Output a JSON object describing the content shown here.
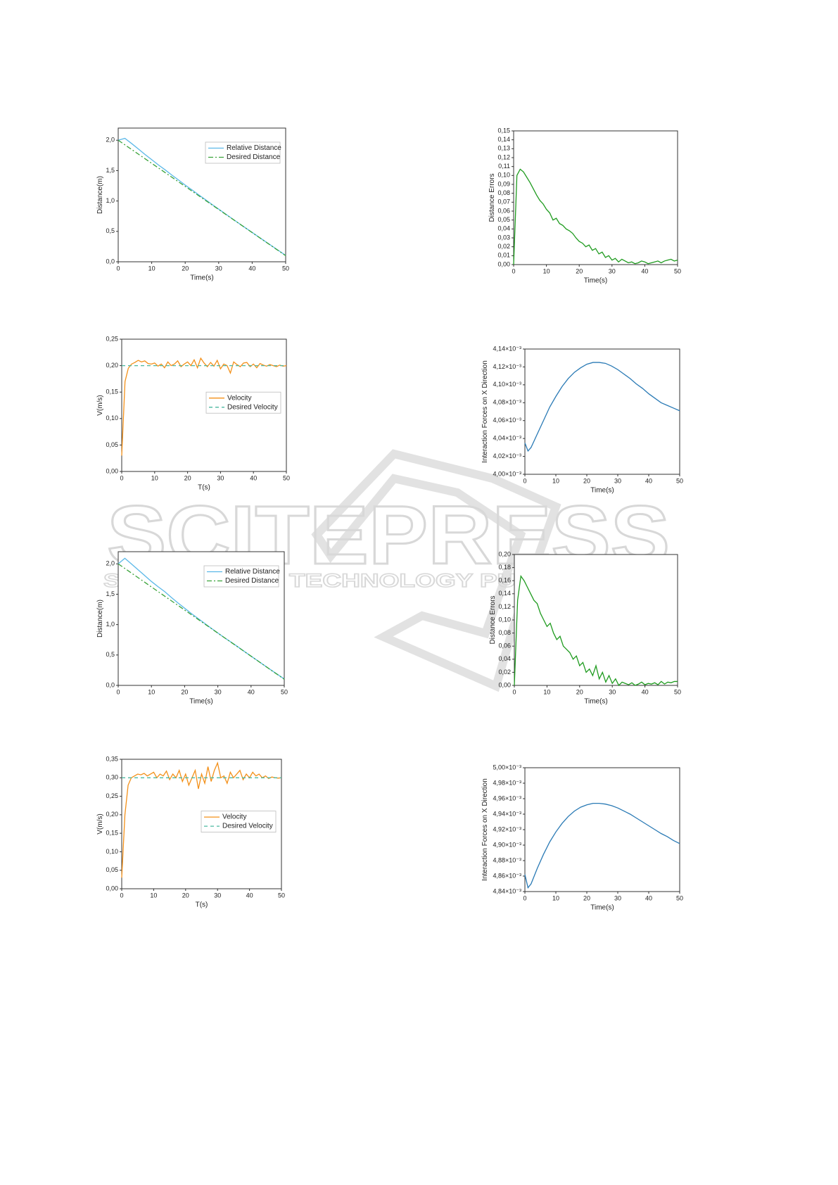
{
  "watermark": {
    "title": "SCITEPRESS",
    "subtitle": "SCIENCE AND TECHNOLOGY PUBLICATIONS"
  },
  "chart_data": [
    {
      "type": "line",
      "x_label": "Time(s)",
      "y_label": "Distance(m)",
      "legend": "upper right",
      "x": [
        0,
        2,
        4,
        6,
        8,
        10,
        12,
        14,
        16,
        18,
        20,
        22,
        24,
        26,
        28,
        30,
        32,
        34,
        36,
        38,
        40,
        42,
        44,
        46,
        48,
        50
      ],
      "series": [
        {
          "name": "Relative Distance",
          "color": "#5bb8e8",
          "style": "solid",
          "values": [
            2.0,
            2.031,
            1.946,
            1.857,
            1.766,
            1.68,
            1.594,
            1.513,
            1.427,
            1.346,
            1.262,
            1.184,
            1.103,
            1.024,
            0.944,
            0.866,
            0.789,
            0.711,
            0.634,
            0.558,
            0.483,
            0.406,
            0.331,
            0.256,
            0.181,
            0.105
          ]
        },
        {
          "name": "Desired Distance",
          "color": "#3aa33a",
          "style": "dashdot",
          "x": [
            0,
            50
          ],
          "values": [
            2.0,
            0.1
          ]
        }
      ],
      "xlim": [
        0,
        50
      ],
      "xticks": [
        0,
        10,
        20,
        30,
        40,
        50
      ],
      "ylim": [
        0,
        2.2
      ],
      "yticks": [
        {
          "value": 0,
          "label": "0,0"
        },
        {
          "value": 0.5,
          "label": "0,5"
        },
        {
          "value": 1,
          "label": "1,0"
        },
        {
          "value": 1.5,
          "label": "1,5"
        },
        {
          "value": 2,
          "label": "2,0"
        }
      ]
    },
    {
      "type": "line",
      "x_label": "Time(s)",
      "y_label": "Distance Errors",
      "x": [
        0,
        1,
        2,
        3,
        4,
        5,
        6,
        7,
        8,
        9,
        10,
        11,
        12,
        13,
        14,
        15,
        16,
        17,
        18,
        19,
        20,
        21,
        22,
        23,
        24,
        25,
        26,
        27,
        28,
        29,
        30,
        31,
        32,
        33,
        34,
        35,
        36,
        37,
        38,
        39,
        40,
        41,
        42,
        43,
        44,
        45,
        46,
        47,
        48,
        49,
        50
      ],
      "series": [
        {
          "name": "Distance Errors",
          "color": "#1f9b1f",
          "style": "solid",
          "values": [
            0,
            0.1,
            0.107,
            0.104,
            0.098,
            0.092,
            0.085,
            0.078,
            0.072,
            0.068,
            0.062,
            0.058,
            0.05,
            0.052,
            0.046,
            0.044,
            0.04,
            0.038,
            0.035,
            0.03,
            0.026,
            0.024,
            0.02,
            0.022,
            0.016,
            0.018,
            0.012,
            0.014,
            0.008,
            0.01,
            0.005,
            0.007,
            0.003,
            0.006,
            0.004,
            0.002,
            0.003,
            0.001,
            0.002,
            0.004,
            0.003,
            0.001,
            0.002,
            0.003,
            0.004,
            0.002,
            0.004,
            0.005,
            0.006,
            0.004,
            0.005
          ]
        }
      ],
      "xlim": [
        0,
        50
      ],
      "xticks": [
        0,
        10,
        20,
        30,
        40,
        50
      ],
      "ylim": [
        0,
        0.15
      ],
      "yticks": [
        {
          "value": 0,
          "label": "0,00"
        },
        {
          "value": 0.01,
          "label": "0,01"
        },
        {
          "value": 0.02,
          "label": "0,02"
        },
        {
          "value": 0.03,
          "label": "0,03"
        },
        {
          "value": 0.04,
          "label": "0,04"
        },
        {
          "value": 0.05,
          "label": "0,05"
        },
        {
          "value": 0.06,
          "label": "0,06"
        },
        {
          "value": 0.07,
          "label": "0,07"
        },
        {
          "value": 0.08,
          "label": "0,08"
        },
        {
          "value": 0.09,
          "label": "0,09"
        },
        {
          "value": 0.1,
          "label": "0,10"
        },
        {
          "value": 0.11,
          "label": "0,11"
        },
        {
          "value": 0.12,
          "label": "0,12"
        },
        {
          "value": 0.13,
          "label": "0,13"
        },
        {
          "value": 0.14,
          "label": "0,14"
        },
        {
          "value": 0.15,
          "label": "0,15"
        }
      ]
    },
    {
      "type": "line",
      "x_label": "T(s)",
      "y_label": "V(m/s)",
      "legend": "center right",
      "x": [
        0,
        1,
        2,
        3,
        4,
        5,
        6,
        7,
        8,
        9,
        10,
        11,
        12,
        13,
        14,
        15,
        16,
        17,
        18,
        19,
        20,
        21,
        22,
        23,
        24,
        25,
        26,
        27,
        28,
        29,
        30,
        31,
        32,
        33,
        34,
        35,
        36,
        37,
        38,
        39,
        40,
        41,
        42,
        43,
        44,
        45,
        46,
        47,
        48,
        49,
        50
      ],
      "series": [
        {
          "name": "Velocity",
          "color": "#f39019",
          "style": "solid",
          "values": [
            0.03,
            0.17,
            0.195,
            0.203,
            0.206,
            0.21,
            0.207,
            0.209,
            0.204,
            0.203,
            0.205,
            0.199,
            0.203,
            0.196,
            0.207,
            0.2,
            0.203,
            0.209,
            0.198,
            0.203,
            0.207,
            0.2,
            0.211,
            0.196,
            0.214,
            0.205,
            0.198,
            0.206,
            0.199,
            0.21,
            0.194,
            0.203,
            0.2,
            0.186,
            0.207,
            0.202,
            0.198,
            0.205,
            0.206,
            0.198,
            0.203,
            0.196,
            0.204,
            0.201,
            0.199,
            0.202,
            0.2,
            0.198,
            0.201,
            0.199,
            0.2
          ]
        },
        {
          "name": "Desired Velocity",
          "color": "#4db8a0",
          "style": "dashed",
          "x": [
            0,
            50
          ],
          "values": [
            0.2,
            0.2
          ]
        }
      ],
      "xlim": [
        0,
        50
      ],
      "xticks": [
        0,
        10,
        20,
        30,
        40,
        50
      ],
      "ylim": [
        0,
        0.25
      ],
      "yticks": [
        {
          "value": 0,
          "label": "0,00"
        },
        {
          "value": 0.05,
          "label": "0,05"
        },
        {
          "value": 0.1,
          "label": "0,10"
        },
        {
          "value": 0.15,
          "label": "0,15"
        },
        {
          "value": 0.2,
          "label": "0,20"
        },
        {
          "value": 0.25,
          "label": "0,25"
        }
      ]
    },
    {
      "type": "line",
      "x_label": "Time(s)",
      "y_label": "Interaction Forces on X Direction",
      "x": [
        0,
        1,
        2,
        4,
        6,
        8,
        10,
        12,
        14,
        16,
        18,
        20,
        22,
        24,
        26,
        28,
        30,
        32,
        34,
        36,
        38,
        40,
        42,
        44,
        46,
        48,
        50
      ],
      "series": [
        {
          "name": "Interaction Forces on X Direction",
          "color": "#2a7ab5",
          "style": "solid",
          "values": [
            0.004035,
            0.004026,
            0.00403,
            0.004045,
            0.00406,
            0.004075,
            0.004087,
            0.004098,
            0.004107,
            0.004114,
            0.004119,
            0.004123,
            0.004125,
            0.004125,
            0.004124,
            0.004121,
            0.004117,
            0.004112,
            0.004107,
            0.004101,
            0.004096,
            0.00409,
            0.004085,
            0.00408,
            0.004077,
            0.004074,
            0.004071
          ]
        }
      ],
      "xlim": [
        0,
        50
      ],
      "xticks": [
        0,
        10,
        20,
        30,
        40,
        50
      ],
      "ylim": [
        0.004,
        0.00414
      ],
      "yticks": [
        {
          "value": 0.004,
          "label": "4,00×10⁻³"
        },
        {
          "value": 0.00402,
          "label": "4,02×10⁻³"
        },
        {
          "value": 0.00404,
          "label": "4,04×10⁻³"
        },
        {
          "value": 0.00406,
          "label": "4,06×10⁻³"
        },
        {
          "value": 0.00408,
          "label": "4,08×10⁻³"
        },
        {
          "value": 0.0041,
          "label": "4,10×10⁻³"
        },
        {
          "value": 0.00412,
          "label": "4,12×10⁻³"
        },
        {
          "value": 0.00414,
          "label": "4,14×10⁻³"
        }
      ]
    },
    {
      "type": "line",
      "x_label": "Time(s)",
      "y_label": "Distance(m)",
      "legend": "upper right",
      "x": [
        0,
        2,
        4,
        6,
        8,
        10,
        12,
        14,
        16,
        18,
        20,
        22,
        24,
        26,
        28,
        30,
        32,
        34,
        36,
        38,
        40,
        42,
        44,
        46,
        48,
        50
      ],
      "series": [
        {
          "name": "Relative Distance",
          "color": "#5bb8e8",
          "style": "solid",
          "values": [
            2.0,
            2.091,
            1.998,
            1.902,
            1.806,
            1.71,
            1.624,
            1.543,
            1.447,
            1.356,
            1.27,
            1.184,
            1.103,
            1.022,
            0.941,
            0.863,
            0.784,
            0.711,
            0.636,
            0.558,
            0.481,
            0.406,
            0.329,
            0.254,
            0.18,
            0.106
          ]
        },
        {
          "name": "Desired Distance",
          "color": "#3aa33a",
          "style": "dashdot",
          "x": [
            0,
            50
          ],
          "values": [
            2.0,
            0.1
          ]
        }
      ],
      "xlim": [
        0,
        50
      ],
      "xticks": [
        0,
        10,
        20,
        30,
        40,
        50
      ],
      "ylim": [
        0,
        2.2
      ],
      "yticks": [
        {
          "value": 0,
          "label": "0,0"
        },
        {
          "value": 0.5,
          "label": "0,5"
        },
        {
          "value": 1,
          "label": "1,0"
        },
        {
          "value": 1.5,
          "label": "1,5"
        },
        {
          "value": 2,
          "label": "2,0"
        }
      ]
    },
    {
      "type": "line",
      "x_label": "Time(s)",
      "y_label": "Distance Errors",
      "x": [
        0,
        1,
        2,
        3,
        4,
        5,
        6,
        7,
        8,
        9,
        10,
        11,
        12,
        13,
        14,
        15,
        16,
        17,
        18,
        19,
        20,
        21,
        22,
        23,
        24,
        25,
        26,
        27,
        28,
        29,
        30,
        31,
        32,
        33,
        34,
        35,
        36,
        37,
        38,
        39,
        40,
        41,
        42,
        43,
        44,
        45,
        46,
        47,
        48,
        49,
        50
      ],
      "series": [
        {
          "name": "Distance Errors",
          "color": "#1f9b1f",
          "style": "solid",
          "values": [
            0,
            0.13,
            0.167,
            0.16,
            0.15,
            0.14,
            0.13,
            0.125,
            0.11,
            0.1,
            0.09,
            0.095,
            0.08,
            0.07,
            0.075,
            0.06,
            0.055,
            0.05,
            0.04,
            0.045,
            0.03,
            0.035,
            0.02,
            0.025,
            0.015,
            0.03,
            0.01,
            0.02,
            0.005,
            0.015,
            0.003,
            0.01,
            0,
            0.005,
            0.003,
            0.001,
            0.004,
            0,
            0.002,
            0.005,
            0.001,
            0.003,
            0.002,
            0.004,
            0.001,
            0.006,
            0.002,
            0.005,
            0.004,
            0.006,
            0.006
          ]
        }
      ],
      "xlim": [
        0,
        50
      ],
      "xticks": [
        0,
        10,
        20,
        30,
        40,
        50
      ],
      "ylim": [
        0,
        0.2
      ],
      "yticks": [
        {
          "value": 0,
          "label": "0,00"
        },
        {
          "value": 0.02,
          "label": "0,02"
        },
        {
          "value": 0.04,
          "label": "0,04"
        },
        {
          "value": 0.06,
          "label": "0,06"
        },
        {
          "value": 0.08,
          "label": "0,08"
        },
        {
          "value": 0.1,
          "label": "0,10"
        },
        {
          "value": 0.12,
          "label": "0,12"
        },
        {
          "value": 0.14,
          "label": "0,14"
        },
        {
          "value": 0.16,
          "label": "0,16"
        },
        {
          "value": 0.18,
          "label": "0,18"
        },
        {
          "value": 0.2,
          "label": "0,20"
        }
      ]
    },
    {
      "type": "line",
      "x_label": "T(s)",
      "y_label": "V(m/s)",
      "legend": "center right",
      "x": [
        0,
        1,
        2,
        3,
        4,
        5,
        6,
        7,
        8,
        9,
        10,
        11,
        12,
        13,
        14,
        15,
        16,
        17,
        18,
        19,
        20,
        21,
        22,
        23,
        24,
        25,
        26,
        27,
        28,
        29,
        30,
        31,
        32,
        33,
        34,
        35,
        36,
        37,
        38,
        39,
        40,
        41,
        42,
        43,
        44,
        45,
        46,
        47,
        48,
        49,
        50
      ],
      "series": [
        {
          "name": "Velocity",
          "color": "#f39019",
          "style": "solid",
          "values": [
            0.03,
            0.2,
            0.28,
            0.3,
            0.305,
            0.31,
            0.308,
            0.312,
            0.305,
            0.31,
            0.315,
            0.3,
            0.31,
            0.305,
            0.318,
            0.295,
            0.31,
            0.3,
            0.32,
            0.29,
            0.31,
            0.28,
            0.3,
            0.32,
            0.27,
            0.31,
            0.285,
            0.33,
            0.29,
            0.32,
            0.34,
            0.3,
            0.305,
            0.285,
            0.315,
            0.3,
            0.31,
            0.32,
            0.295,
            0.31,
            0.3,
            0.315,
            0.305,
            0.31,
            0.3,
            0.305,
            0.298,
            0.302,
            0.3,
            0.299,
            0.3
          ]
        },
        {
          "name": "Desired Velocity",
          "color": "#4db8a0",
          "style": "dashed",
          "x": [
            0,
            50
          ],
          "values": [
            0.3,
            0.3
          ]
        }
      ],
      "xlim": [
        0,
        50
      ],
      "xticks": [
        0,
        10,
        20,
        30,
        40,
        50
      ],
      "ylim": [
        0,
        0.35
      ],
      "yticks": [
        {
          "value": 0,
          "label": "0,00"
        },
        {
          "value": 0.05,
          "label": "0,05"
        },
        {
          "value": 0.1,
          "label": "0,10"
        },
        {
          "value": 0.15,
          "label": "0,15"
        },
        {
          "value": 0.2,
          "label": "0,20"
        },
        {
          "value": 0.25,
          "label": "0,25"
        },
        {
          "value": 0.3,
          "label": "0,30"
        },
        {
          "value": 0.35,
          "label": "0,35"
        }
      ]
    },
    {
      "type": "line",
      "x_label": "Time(s)",
      "y_label": "Interaction Forces on X Direction",
      "x": [
        0,
        1,
        2,
        4,
        6,
        8,
        10,
        12,
        14,
        16,
        18,
        20,
        22,
        24,
        26,
        28,
        30,
        32,
        34,
        36,
        38,
        40,
        42,
        44,
        46,
        48,
        50
      ],
      "series": [
        {
          "name": "Interaction Forces on X Direction",
          "color": "#2a7ab5",
          "style": "solid",
          "values": [
            0.004862,
            0.004845,
            0.00485,
            0.00487,
            0.004888,
            0.004904,
            0.004917,
            0.004928,
            0.004937,
            0.004944,
            0.004949,
            0.004952,
            0.004954,
            0.004954,
            0.004953,
            0.004951,
            0.004948,
            0.004944,
            0.00494,
            0.004935,
            0.00493,
            0.004925,
            0.00492,
            0.004915,
            0.004911,
            0.004906,
            0.004902
          ]
        }
      ],
      "xlim": [
        0,
        50
      ],
      "xticks": [
        0,
        10,
        20,
        30,
        40,
        50
      ],
      "ylim": [
        0.00484,
        0.005
      ],
      "yticks": [
        {
          "value": 0.00484,
          "label": "4,84×10⁻³"
        },
        {
          "value": 0.00486,
          "label": "4,86×10⁻³"
        },
        {
          "value": 0.00488,
          "label": "4,88×10⁻³"
        },
        {
          "value": 0.0049,
          "label": "4,90×10⁻³"
        },
        {
          "value": 0.00492,
          "label": "4,92×10⁻³"
        },
        {
          "value": 0.00494,
          "label": "4,94×10⁻³"
        },
        {
          "value": 0.00496,
          "label": "4,96×10⁻³"
        },
        {
          "value": 0.00498,
          "label": "4,98×10⁻³"
        },
        {
          "value": 0.005,
          "label": "5,00×10⁻³"
        }
      ]
    }
  ]
}
